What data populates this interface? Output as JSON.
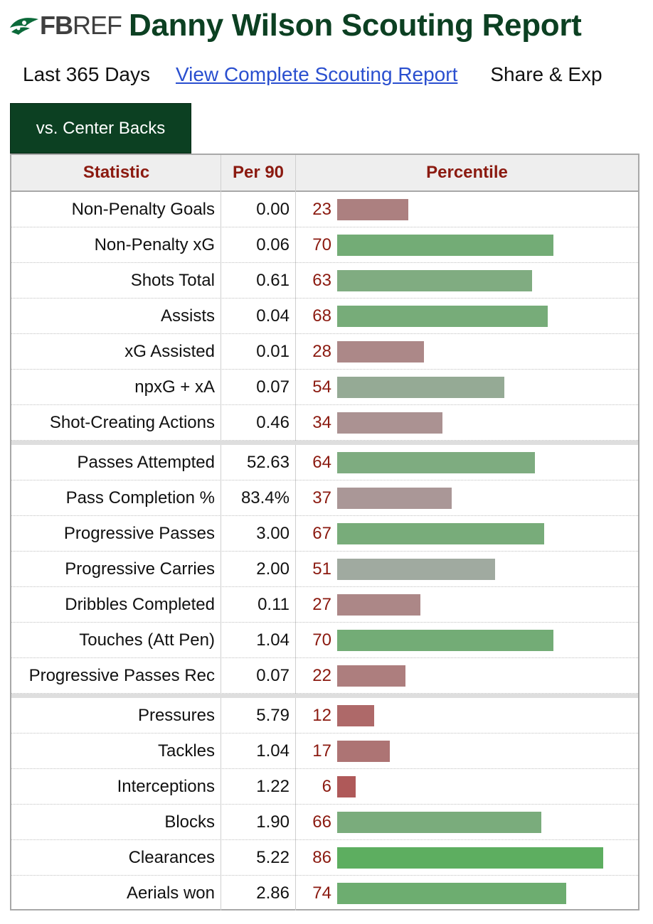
{
  "header": {
    "logo_fb": "FB",
    "logo_ref": "REF",
    "title": "Danny Wilson Scouting Report"
  },
  "subnav": {
    "range": "Last 365 Days",
    "link": "View Complete Scouting Report",
    "share": "Share & Exp"
  },
  "tab": {
    "label": "vs. Center Backs"
  },
  "table": {
    "headers": {
      "statistic": "Statistic",
      "per90": "Per 90",
      "percentile": "Percentile"
    },
    "groups": [
      [
        {
          "stat": "Non-Penalty Goals",
          "per90": "0.00",
          "pct": 23
        },
        {
          "stat": "Non-Penalty xG",
          "per90": "0.06",
          "pct": 70
        },
        {
          "stat": "Shots Total",
          "per90": "0.61",
          "pct": 63
        },
        {
          "stat": "Assists",
          "per90": "0.04",
          "pct": 68
        },
        {
          "stat": "xG Assisted",
          "per90": "0.01",
          "pct": 28
        },
        {
          "stat": "npxG + xA",
          "per90": "0.07",
          "pct": 54
        },
        {
          "stat": "Shot-Creating Actions",
          "per90": "0.46",
          "pct": 34
        }
      ],
      [
        {
          "stat": "Passes Attempted",
          "per90": "52.63",
          "pct": 64
        },
        {
          "stat": "Pass Completion %",
          "per90": "83.4%",
          "pct": 37
        },
        {
          "stat": "Progressive Passes",
          "per90": "3.00",
          "pct": 67
        },
        {
          "stat": "Progressive Carries",
          "per90": "2.00",
          "pct": 51
        },
        {
          "stat": "Dribbles Completed",
          "per90": "0.11",
          "pct": 27
        },
        {
          "stat": "Touches (Att Pen)",
          "per90": "1.04",
          "pct": 70
        },
        {
          "stat": "Progressive Passes Rec",
          "per90": "0.07",
          "pct": 22
        }
      ],
      [
        {
          "stat": "Pressures",
          "per90": "5.79",
          "pct": 12
        },
        {
          "stat": "Tackles",
          "per90": "1.04",
          "pct": 17
        },
        {
          "stat": "Interceptions",
          "per90": "1.22",
          "pct": 6
        },
        {
          "stat": "Blocks",
          "per90": "1.90",
          "pct": 66
        },
        {
          "stat": "Clearances",
          "per90": "5.22",
          "pct": 86
        },
        {
          "stat": "Aerials won",
          "per90": "2.86",
          "pct": 74
        }
      ]
    ]
  },
  "colors": {
    "title_green": "#0c4022",
    "header_red": "#8b1a10",
    "link_blue": "#2a4fcf",
    "bar_low": "#b23a3a",
    "bar_mid": "#a9a9a9",
    "bar_high": "#4caf50"
  }
}
